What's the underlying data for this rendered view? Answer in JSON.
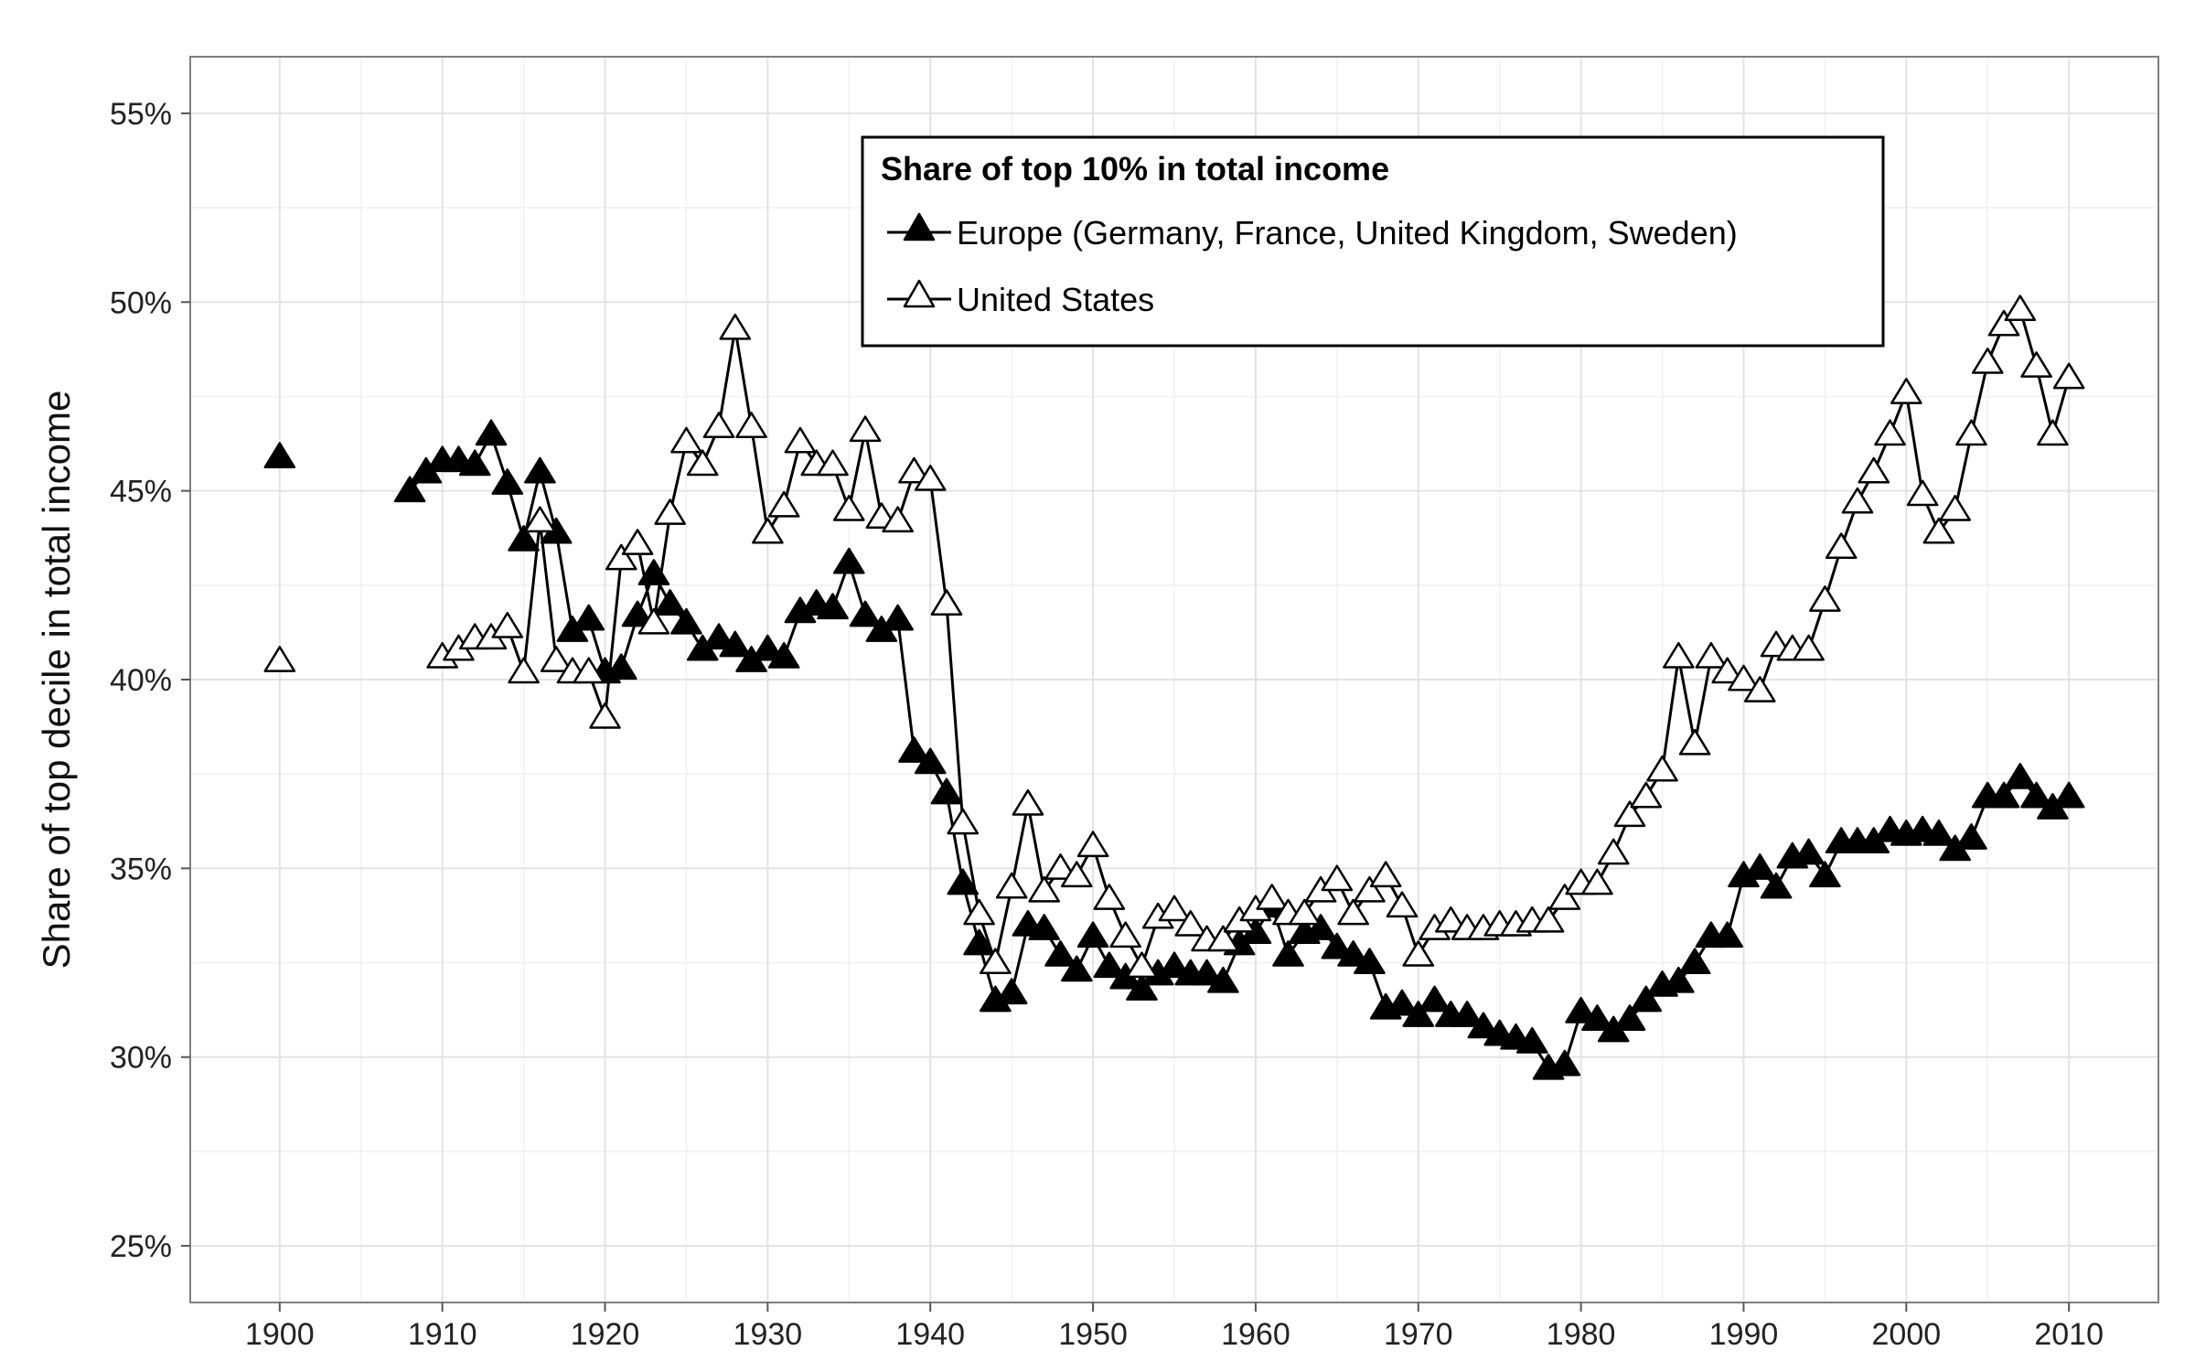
{
  "chart_data": {
    "type": "line",
    "title": "",
    "xlabel": "",
    "ylabel": "Share of top decile in total income",
    "xlim": [
      1894.5,
      2015.5
    ],
    "ylim": [
      0.235,
      0.565
    ],
    "xticks": [
      1900,
      1910,
      1920,
      1930,
      1940,
      1950,
      1960,
      1970,
      1980,
      1990,
      2000,
      2010
    ],
    "yticks": [
      0.25,
      0.3,
      0.35,
      0.4,
      0.45,
      0.5,
      0.55
    ],
    "ytick_labels": [
      "25%",
      "30%",
      "35%",
      "40%",
      "45%",
      "50%",
      "55%"
    ],
    "grid": true,
    "legend": {
      "title": "Share of top 10% in total income",
      "position": "top-center"
    },
    "series": [
      {
        "name": "Europe (Germany, France, United Kingdom, Sweden)",
        "marker": "filled-triangle",
        "x": [
          1900,
          1908,
          1909,
          1910,
          1911,
          1912,
          1913,
          1914,
          1915,
          1916,
          1917,
          1918,
          1919,
          1920,
          1921,
          1922,
          1923,
          1924,
          1925,
          1926,
          1927,
          1928,
          1929,
          1930,
          1931,
          1932,
          1933,
          1934,
          1935,
          1936,
          1937,
          1938,
          1939,
          1940,
          1941,
          1942,
          1943,
          1944,
          1945,
          1946,
          1947,
          1948,
          1949,
          1950,
          1951,
          1952,
          1953,
          1954,
          1955,
          1956,
          1957,
          1958,
          1959,
          1960,
          1961,
          1962,
          1963,
          1964,
          1965,
          1966,
          1967,
          1968,
          1969,
          1970,
          1971,
          1972,
          1973,
          1974,
          1975,
          1976,
          1977,
          1978,
          1979,
          1980,
          1981,
          1982,
          1983,
          1984,
          1985,
          1986,
          1987,
          1988,
          1989,
          1990,
          1991,
          1992,
          1993,
          1994,
          1995,
          1996,
          1997,
          1998,
          1999,
          2000,
          2001,
          2002,
          2003,
          2004,
          2005,
          2006,
          2007,
          2008,
          2009,
          2010
        ],
        "y": [
          0.459,
          0.45,
          0.455,
          0.458,
          0.458,
          0.457,
          0.465,
          0.452,
          0.437,
          0.455,
          0.439,
          0.413,
          0.416,
          0.402,
          0.403,
          0.417,
          0.428,
          0.42,
          0.415,
          0.408,
          0.411,
          0.409,
          0.405,
          0.408,
          0.406,
          0.418,
          0.42,
          0.419,
          0.431,
          0.417,
          0.413,
          0.416,
          0.381,
          0.378,
          0.37,
          0.346,
          0.33,
          0.315,
          0.317,
          0.335,
          0.334,
          0.327,
          0.323,
          0.332,
          0.324,
          0.321,
          0.318,
          0.322,
          0.324,
          0.322,
          0.322,
          0.32,
          0.33,
          0.333,
          0.34,
          0.327,
          0.333,
          0.334,
          0.329,
          0.327,
          0.325,
          0.313,
          0.314,
          0.311,
          0.315,
          0.311,
          0.311,
          0.308,
          0.306,
          0.305,
          0.304,
          0.297,
          0.298,
          0.312,
          0.31,
          0.307,
          0.31,
          0.315,
          0.319,
          0.32,
          0.325,
          0.332,
          0.332,
          0.348,
          0.35,
          0.345,
          0.353,
          0.354,
          0.348,
          0.357,
          0.357,
          0.357,
          0.36,
          0.359,
          0.36,
          0.359,
          0.355,
          0.358,
          0.369,
          0.369,
          0.374,
          0.369,
          0.366,
          0.369
        ]
      },
      {
        "name": "United States",
        "marker": "open-triangle",
        "x": [
          1900,
          1910,
          1911,
          1912,
          1913,
          1914,
          1915,
          1916,
          1917,
          1918,
          1919,
          1920,
          1921,
          1922,
          1923,
          1924,
          1925,
          1926,
          1927,
          1928,
          1929,
          1930,
          1931,
          1932,
          1933,
          1934,
          1935,
          1936,
          1937,
          1938,
          1939,
          1940,
          1941,
          1942,
          1943,
          1944,
          1945,
          1946,
          1947,
          1948,
          1949,
          1950,
          1951,
          1952,
          1953,
          1954,
          1955,
          1956,
          1957,
          1958,
          1959,
          1960,
          1961,
          1962,
          1963,
          1964,
          1965,
          1966,
          1967,
          1968,
          1969,
          1970,
          1971,
          1972,
          1973,
          1974,
          1975,
          1976,
          1977,
          1978,
          1979,
          1980,
          1981,
          1982,
          1983,
          1984,
          1985,
          1986,
          1987,
          1988,
          1989,
          1990,
          1991,
          1992,
          1993,
          1994,
          1995,
          1996,
          1997,
          1998,
          1999,
          2000,
          2001,
          2002,
          2003,
          2004,
          2005,
          2006,
          2007,
          2008,
          2009,
          2010
        ],
        "y": [
          0.405,
          0.406,
          0.408,
          0.411,
          0.411,
          0.414,
          0.402,
          0.442,
          0.405,
          0.402,
          0.402,
          0.39,
          0.432,
          0.436,
          0.415,
          0.444,
          0.463,
          0.457,
          0.467,
          0.493,
          0.467,
          0.439,
          0.446,
          0.463,
          0.457,
          0.457,
          0.445,
          0.466,
          0.443,
          0.442,
          0.455,
          0.453,
          0.42,
          0.362,
          0.338,
          0.325,
          0.345,
          0.367,
          0.344,
          0.35,
          0.348,
          0.356,
          0.342,
          0.332,
          0.324,
          0.337,
          0.339,
          0.335,
          0.331,
          0.331,
          0.336,
          0.339,
          0.342,
          0.338,
          0.338,
          0.344,
          0.347,
          0.338,
          0.344,
          0.348,
          0.34,
          0.327,
          0.334,
          0.336,
          0.334,
          0.334,
          0.335,
          0.335,
          0.336,
          0.336,
          0.342,
          0.346,
          0.346,
          0.354,
          0.364,
          0.369,
          0.376,
          0.406,
          0.383,
          0.406,
          0.402,
          0.4,
          0.397,
          0.409,
          0.408,
          0.408,
          0.421,
          0.435,
          0.447,
          0.455,
          0.465,
          0.476,
          0.449,
          0.439,
          0.445,
          0.465,
          0.484,
          0.494,
          0.498,
          0.483,
          0.465,
          0.48
        ]
      }
    ]
  }
}
